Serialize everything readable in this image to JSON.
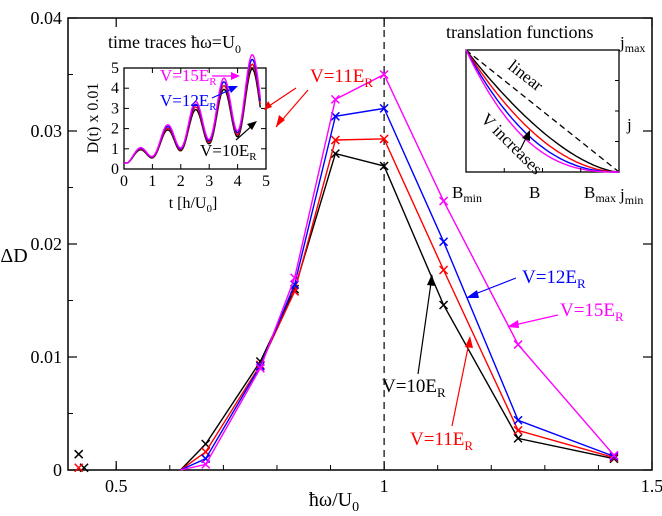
{
  "chart_data": [
    {
      "type": "line",
      "xlabel": "ħω/U",
      "xlabel_sub": "0",
      "ylabel": "ΔD",
      "xlim": [
        0.41,
        1.5
      ],
      "ylim": [
        0,
        0.04
      ],
      "xticks": [
        {
          "v": 0.5,
          "t": "0.5"
        },
        {
          "v": 1.0,
          "t": "1"
        },
        {
          "v": 1.5,
          "t": "1.5"
        }
      ],
      "yticks": [
        {
          "v": 0,
          "t": "0"
        },
        {
          "v": 0.01,
          "t": "0.01"
        },
        {
          "v": 0.02,
          "t": "0.02"
        },
        {
          "v": 0.03,
          "t": "0.03"
        },
        {
          "v": 0.04,
          "t": "0.04"
        }
      ],
      "vline_x": 1.0,
      "series": [
        {
          "name": "V=10E",
          "sub": "R",
          "color": "#000000",
          "x": [
            0.667,
            0.769,
            0.833,
            0.909,
            1.0,
            1.111,
            1.25,
            1.429
          ],
          "y": [
            0.0023,
            0.0096,
            0.016,
            0.028,
            0.0269,
            0.0146,
            0.0028,
            0.001
          ],
          "extra_x": [
            0.43,
            0.44
          ],
          "extra_y": [
            0.0014,
            0.0002
          ]
        },
        {
          "name": "V=11E",
          "sub": "R",
          "color": "#ff0000",
          "x": [
            0.667,
            0.769,
            0.833,
            0.909,
            1.0,
            1.111,
            1.25,
            1.429
          ],
          "y": [
            0.0016,
            0.0093,
            0.0158,
            0.0292,
            0.0293,
            0.0177,
            0.0035,
            0.0011
          ],
          "extra_x": [
            0.43
          ],
          "extra_y": [
            0.0002
          ]
        },
        {
          "name": "V=12E",
          "sub": "R",
          "color": "#0000ff",
          "x": [
            0.667,
            0.769,
            0.833,
            0.909,
            1.0,
            1.111,
            1.25,
            1.429
          ],
          "y": [
            0.001,
            0.0092,
            0.0164,
            0.0313,
            0.032,
            0.0202,
            0.0044,
            0.0012
          ],
          "extra_x": [],
          "extra_y": []
        },
        {
          "name": "V=15E",
          "sub": "R",
          "color": "#ff00ff",
          "x": [
            0.667,
            0.769,
            0.833,
            0.909,
            1.0,
            1.111,
            1.25,
            1.429
          ],
          "y": [
            0.0005,
            0.009,
            0.017,
            0.0328,
            0.035,
            0.0238,
            0.0111,
            0.0013
          ],
          "extra_x": [],
          "extra_y": []
        }
      ]
    },
    {
      "type": "line",
      "title": "time traces ħω=U",
      "title_sub": "0",
      "xlabel": "t [h/U",
      "xlabel_sub": "0",
      "xlabel_tail": "]",
      "ylabel": "D(t) x 0.01",
      "xlim": [
        0,
        5
      ],
      "ylim": [
        0,
        5
      ],
      "xticks": [
        0,
        1,
        2,
        3,
        4,
        5
      ],
      "yticks": [
        0,
        1,
        2,
        3,
        4,
        5
      ],
      "series": [
        {
          "name": "V=10E",
          "sub": "R",
          "color": "#000000",
          "amp": 0.0
        },
        {
          "name": "V=11E",
          "sub": "R",
          "color": "#ff0000",
          "amp": 0.04
        },
        {
          "name": "V=12E",
          "sub": "R",
          "color": "#0000ff",
          "amp": 0.08
        },
        {
          "name": "V=15E",
          "sub": "R",
          "color": "#ff00ff",
          "amp": 0.12
        }
      ]
    },
    {
      "type": "line",
      "title": "translation functions",
      "xlabel": "B",
      "ylabel": "j",
      "corner_labels": {
        "jmax": "j",
        "jmax_sub": "max",
        "jmin": "j",
        "jmin_sub": "min",
        "bmin": "B",
        "bmin_sub": "min",
        "bmax": "B",
        "bmax_sub": "max"
      },
      "annotations": {
        "linear": "linear",
        "v_increases": "V increases"
      },
      "curve_colors": [
        "#000000",
        "#ff0000",
        "#0000ff",
        "#ff00ff"
      ]
    }
  ]
}
